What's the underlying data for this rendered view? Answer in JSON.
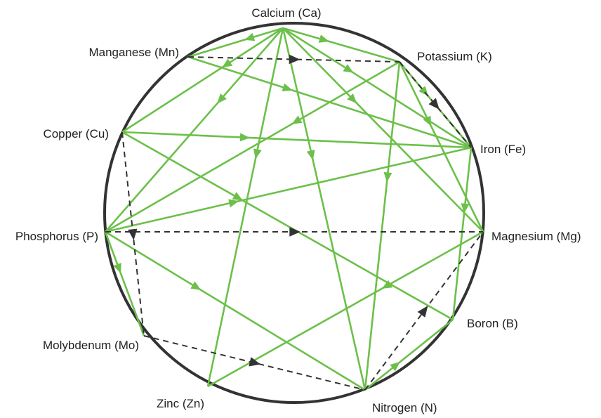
{
  "colors": {
    "circle": "#333333",
    "stimulate": "#6cc04a",
    "antagonism": "#333333",
    "label": "#222222"
  },
  "nodes": [
    {
      "id": "ca",
      "label": "Calcium (Ca)"
    },
    {
      "id": "k",
      "label": "Potassium (K)"
    },
    {
      "id": "fe",
      "label": "Iron (Fe)"
    },
    {
      "id": "mg",
      "label": "Magnesium (Mg)"
    },
    {
      "id": "b",
      "label": "Boron (B)"
    },
    {
      "id": "n",
      "label": "Nitrogen (N)"
    },
    {
      "id": "zn",
      "label": "Zinc (Zn)"
    },
    {
      "id": "mo",
      "label": "Molybdenum (Mo)"
    },
    {
      "id": "p",
      "label": "Phosphorus (P)"
    },
    {
      "id": "cu",
      "label": "Copper (Cu)"
    },
    {
      "id": "mn",
      "label": "Manganese (Mn)"
    }
  ],
  "green_links": [
    {
      "from": "ca",
      "to": "k"
    },
    {
      "from": "ca",
      "to": "fe"
    },
    {
      "from": "ca",
      "to": "mg"
    },
    {
      "from": "ca",
      "to": "n"
    },
    {
      "from": "ca",
      "to": "zn"
    },
    {
      "from": "ca",
      "to": "p"
    },
    {
      "from": "ca",
      "to": "cu"
    },
    {
      "from": "ca",
      "to": "mn"
    },
    {
      "from": "k",
      "to": "fe"
    },
    {
      "from": "k",
      "to": "mg"
    },
    {
      "from": "k",
      "to": "n"
    },
    {
      "from": "k",
      "to": "p"
    },
    {
      "from": "mn",
      "to": "fe"
    },
    {
      "from": "cu",
      "to": "fe"
    },
    {
      "from": "p",
      "to": "fe"
    },
    {
      "from": "fe",
      "to": "b"
    },
    {
      "from": "cu",
      "to": "b"
    },
    {
      "from": "mg",
      "to": "zn"
    },
    {
      "from": "n",
      "to": "b"
    },
    {
      "from": "p",
      "to": "n"
    },
    {
      "from": "p",
      "to": "mo"
    }
  ],
  "dashed_links": [
    {
      "from": "mn",
      "to": "k"
    },
    {
      "from": "k",
      "to": "fe"
    },
    {
      "from": "p",
      "to": "mg"
    },
    {
      "from": "cu",
      "to": "mo"
    },
    {
      "from": "mo",
      "to": "n"
    },
    {
      "from": "n",
      "to": "mg"
    }
  ]
}
